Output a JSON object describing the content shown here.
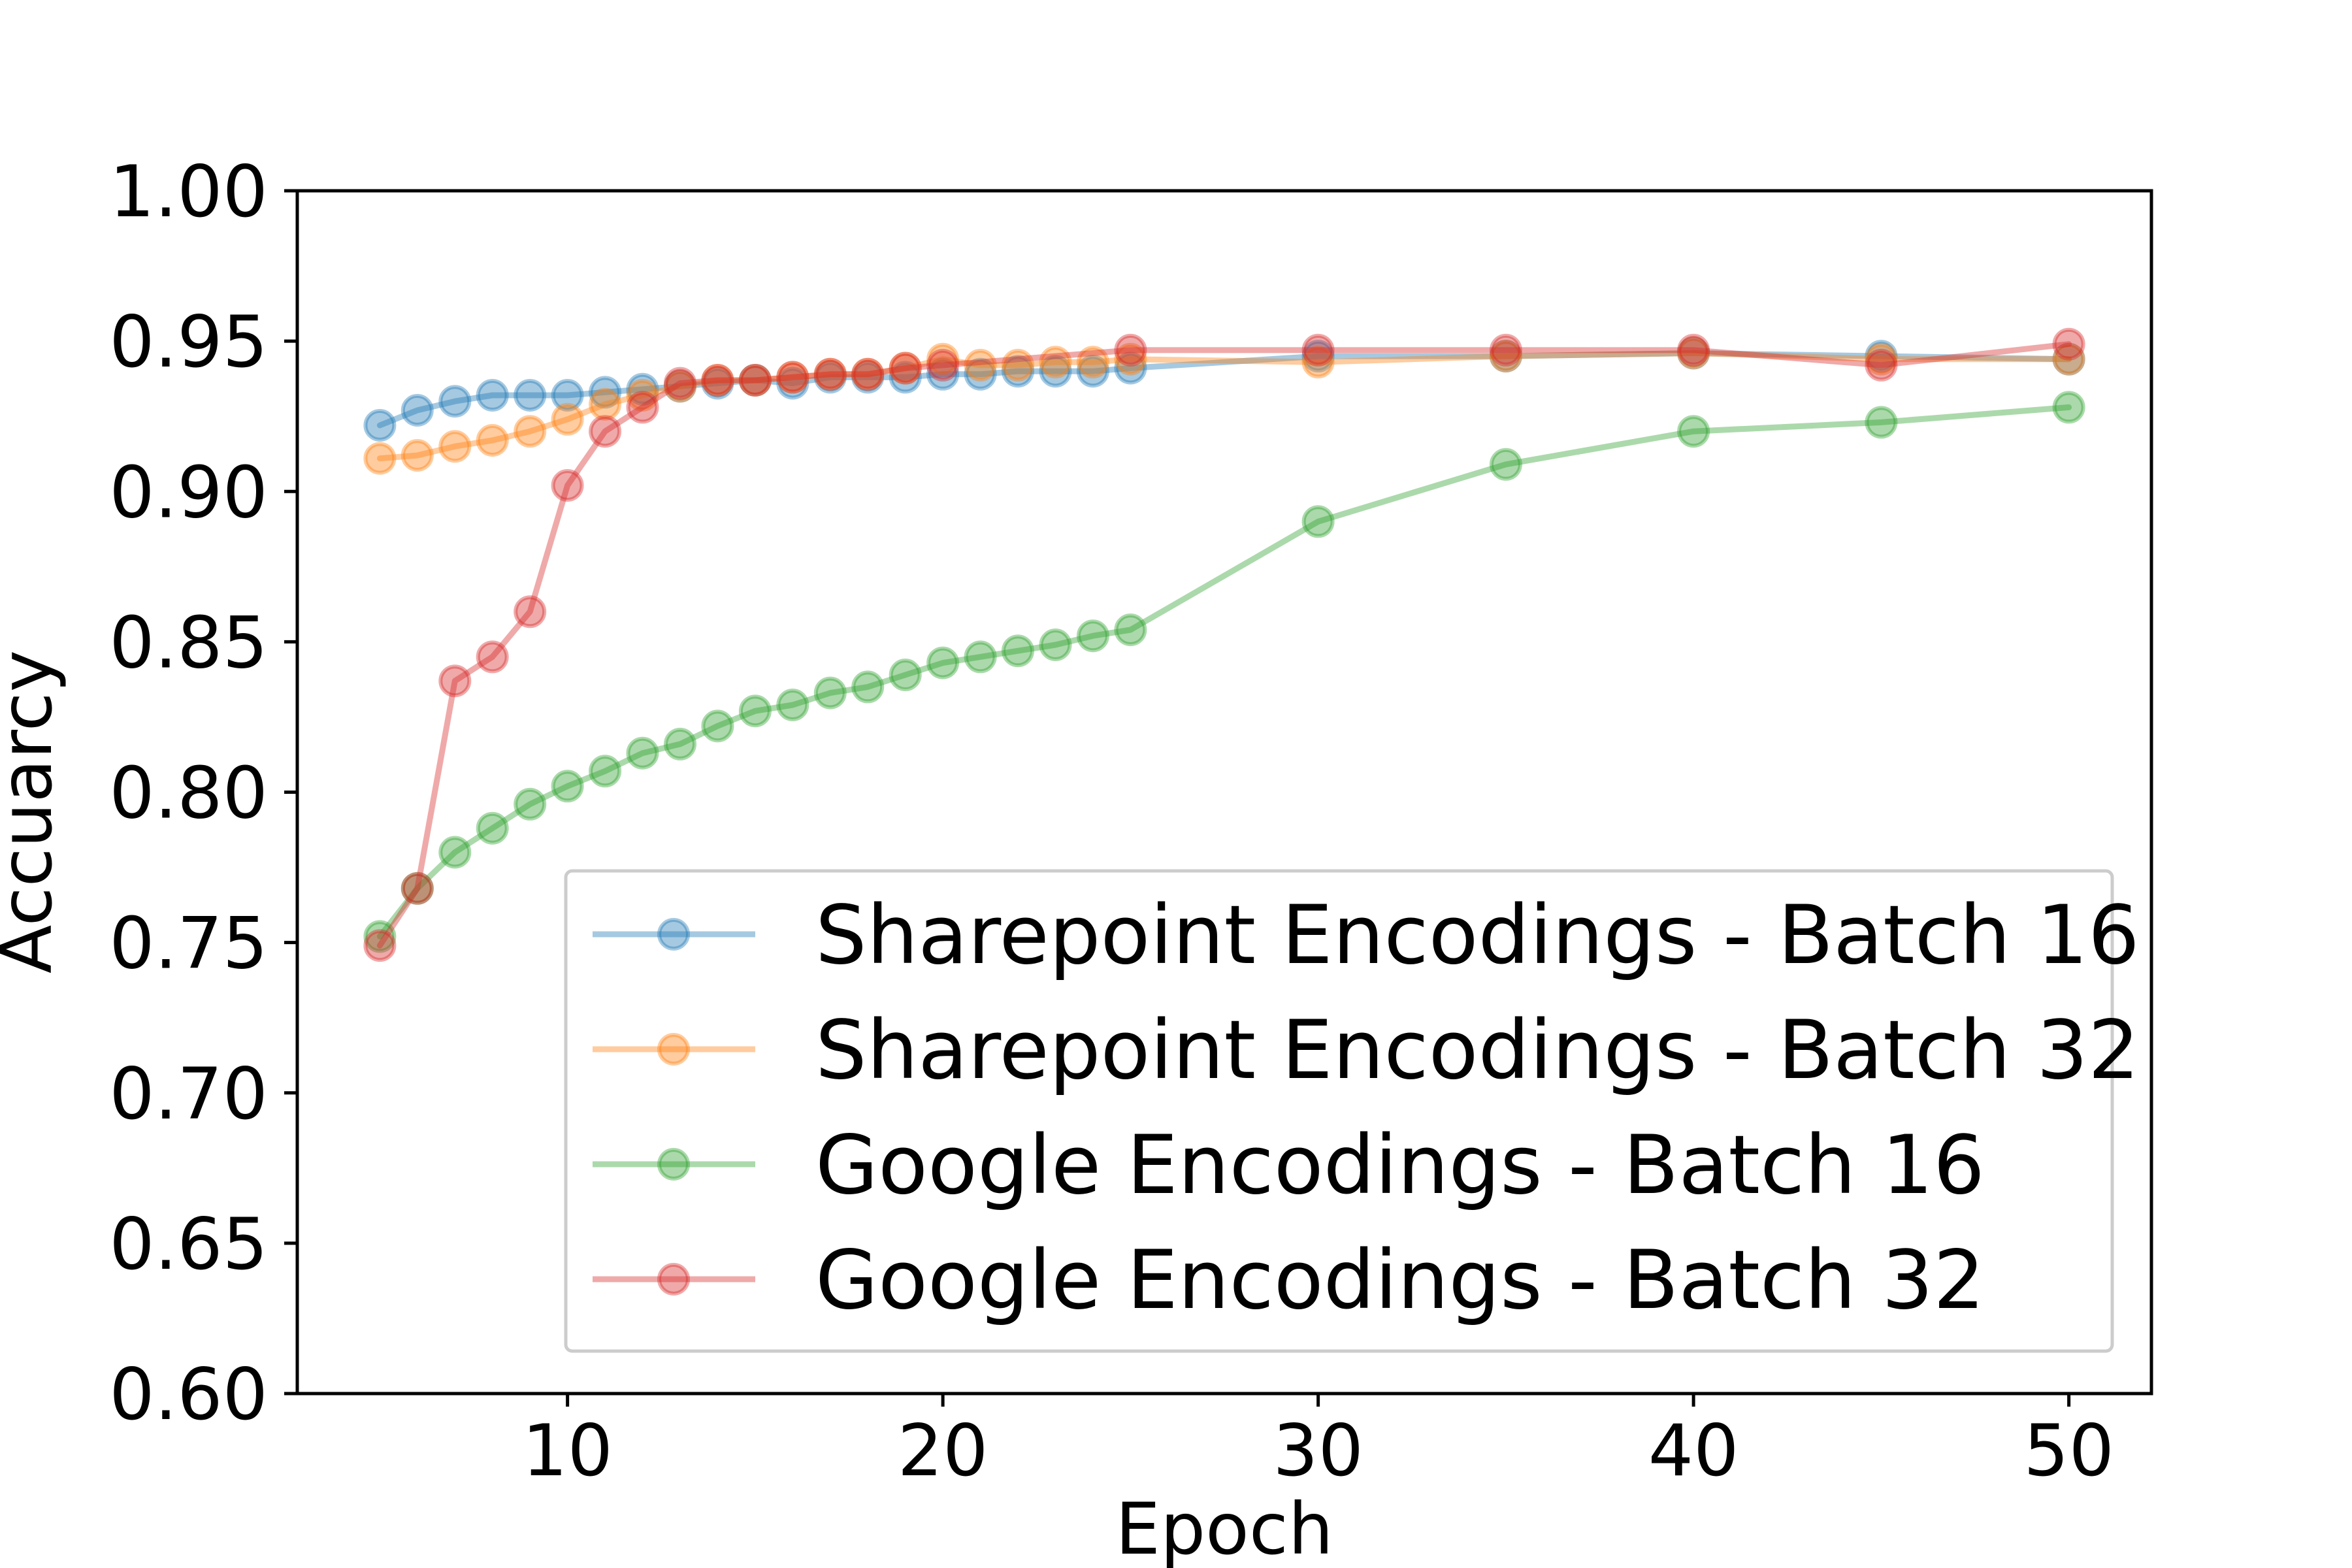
{
  "chart_data": {
    "type": "line",
    "title": "",
    "xlabel": "Epoch",
    "ylabel": "Accuarcy",
    "xlim": [
      2.8,
      52.2
    ],
    "ylim": [
      0.6,
      1.0
    ],
    "x_ticks": [
      10,
      20,
      30,
      40,
      50
    ],
    "x_tick_labels": [
      "10",
      "20",
      "30",
      "40",
      "50"
    ],
    "y_ticks": [
      0.6,
      0.65,
      0.7,
      0.75,
      0.8,
      0.85,
      0.9,
      0.95,
      1.0
    ],
    "y_tick_labels": [
      "0.60",
      "0.65",
      "0.70",
      "0.75",
      "0.80",
      "0.85",
      "0.90",
      "0.95",
      "1.00"
    ],
    "grid": false,
    "legend_position": "lower-right",
    "x": [
      5,
      6,
      7,
      8,
      9,
      10,
      11,
      12,
      13,
      14,
      15,
      16,
      17,
      18,
      19,
      20,
      21,
      22,
      23,
      24,
      25,
      30,
      35,
      40,
      45,
      50
    ],
    "series": [
      {
        "name": "Sharepoint Encodings - Batch 16",
        "color": "#1f77b4",
        "values": [
          0.922,
          0.927,
          0.93,
          0.932,
          0.932,
          0.932,
          0.933,
          0.934,
          0.935,
          0.936,
          0.937,
          0.936,
          0.938,
          0.938,
          0.938,
          0.939,
          0.939,
          0.94,
          0.94,
          0.94,
          0.941,
          0.945,
          0.945,
          0.946,
          0.945,
          0.944
        ]
      },
      {
        "name": "Sharepoint Encodings - Batch 32",
        "color": "#ff7f0e",
        "values": [
          0.911,
          0.912,
          0.915,
          0.917,
          0.92,
          0.924,
          0.929,
          0.932,
          0.935,
          0.937,
          0.937,
          0.938,
          0.939,
          0.939,
          0.941,
          0.944,
          0.942,
          0.942,
          0.943,
          0.943,
          0.944,
          0.943,
          0.945,
          0.946,
          0.944,
          0.944
        ]
      },
      {
        "name": "Google Encodings - Batch 16",
        "color": "#2ca02c",
        "values": [
          0.752,
          0.768,
          0.78,
          0.788,
          0.796,
          0.802,
          0.807,
          0.813,
          0.816,
          0.822,
          0.827,
          0.829,
          0.833,
          0.835,
          0.839,
          0.843,
          0.845,
          0.847,
          0.849,
          0.852,
          0.854,
          0.89,
          0.909,
          0.92,
          0.923,
          0.928
        ]
      },
      {
        "name": "Google Encodings - Batch 32",
        "color": "#d62728",
        "values": [
          0.749,
          0.768,
          0.837,
          0.845,
          0.86,
          0.902,
          0.92,
          0.928,
          0.936,
          0.937,
          0.937,
          0.938,
          0.939,
          0.939,
          0.941,
          0.942,
          null,
          null,
          null,
          null,
          0.947,
          0.947,
          0.947,
          0.947,
          0.942,
          0.949
        ]
      }
    ]
  }
}
